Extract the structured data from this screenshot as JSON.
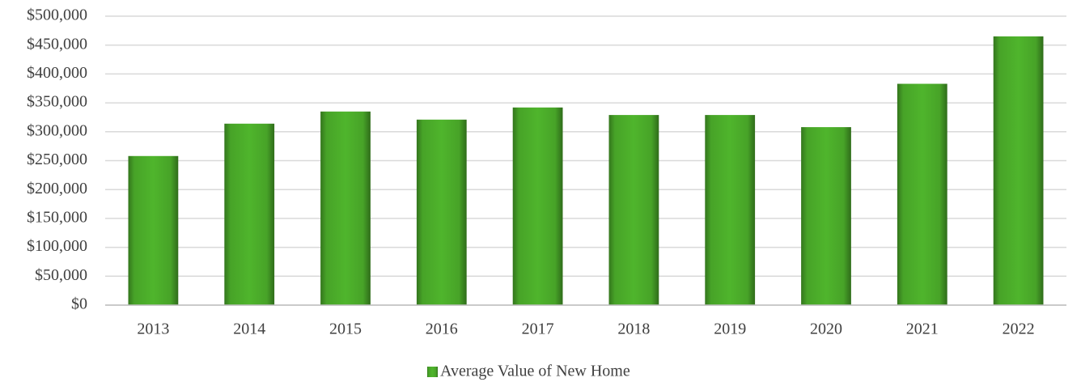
{
  "chart_data": {
    "type": "bar",
    "categories": [
      "2013",
      "2014",
      "2015",
      "2016",
      "2017",
      "2018",
      "2019",
      "2020",
      "2021",
      "2022"
    ],
    "series": [
      {
        "name": "Average Value of New Home",
        "color": "#4fb52c",
        "values": [
          258000,
          314000,
          335000,
          321000,
          342000,
          329000,
          329000,
          308000,
          383000,
          465000
        ]
      }
    ],
    "ylim": [
      0,
      500000
    ],
    "yticks": [
      {
        "value": 0,
        "label": "$0"
      },
      {
        "value": 50000,
        "label": "$50,000"
      },
      {
        "value": 100000,
        "label": "$100,000"
      },
      {
        "value": 150000,
        "label": "$150,000"
      },
      {
        "value": 200000,
        "label": "$200,000"
      },
      {
        "value": 250000,
        "label": "$250,000"
      },
      {
        "value": 300000,
        "label": "$300,000"
      },
      {
        "value": 350000,
        "label": "$350,000"
      },
      {
        "value": 400000,
        "label": "$400,000"
      },
      {
        "value": 450000,
        "label": "$450,000"
      },
      {
        "value": 500000,
        "label": "$500,000"
      }
    ],
    "grid": true,
    "legend": "bottom"
  }
}
